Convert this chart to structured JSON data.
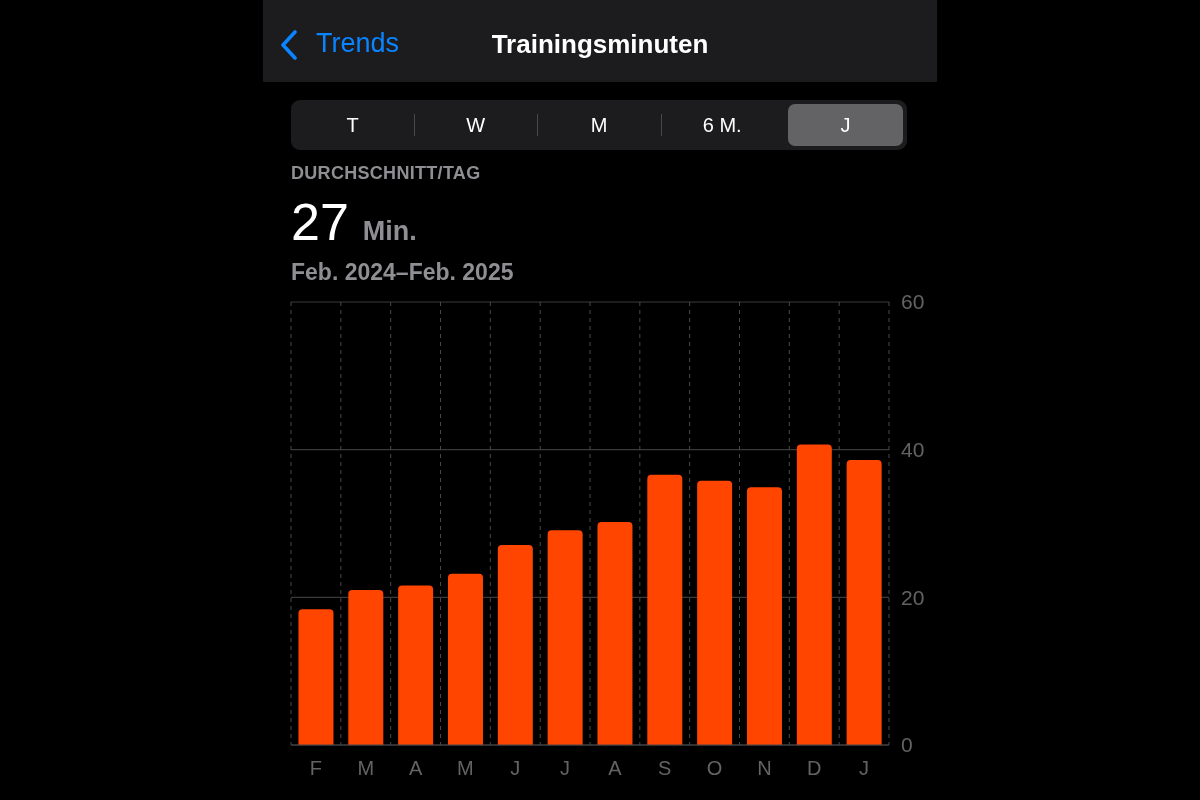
{
  "chart_data": {
    "type": "bar",
    "title": "Trainingsminuten",
    "annotations": [
      "Trends",
      "T",
      "W",
      "M",
      "6 M.",
      "J",
      "DURCHSCHNITT/TAG",
      "27 Min.",
      "Feb. 2024–Feb. 2025"
    ],
    "categories": [
      "F",
      "M",
      "A",
      "M",
      "J",
      "J",
      "A",
      "S",
      "O",
      "N",
      "D",
      "J"
    ],
    "values": [
      18.4,
      21.0,
      21.6,
      23.2,
      27.1,
      29.1,
      30.2,
      36.6,
      35.8,
      34.9,
      40.7,
      38.6
    ],
    "color": "#ff4500",
    "ylim": [
      0,
      60
    ],
    "yticks": [
      0,
      20,
      40,
      60
    ],
    "grid": true
  }
}
